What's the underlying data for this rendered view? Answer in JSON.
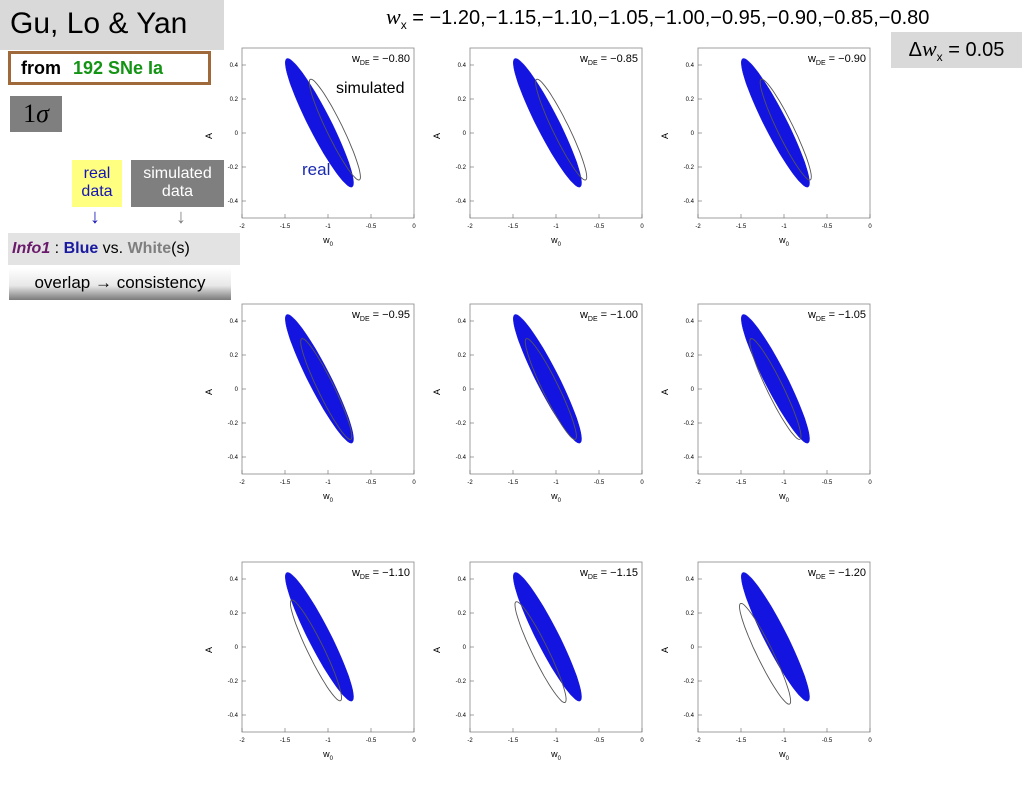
{
  "header": {
    "title": "Gu, Lo & Yan",
    "source": {
      "from": "from",
      "count": "192 SNe Ia"
    },
    "confidence": {
      "number": "1",
      "symbol": "σ"
    }
  },
  "legend": {
    "real_data": "real data",
    "simulated_data": "simulated data",
    "down_arrow": "↓"
  },
  "info": {
    "name": "Info1",
    "sep": " : ",
    "blue": "Blue",
    "vs": " vs. ",
    "white": "White",
    "suffix": "(s)"
  },
  "overlap": {
    "text": "overlap",
    "arrow": "→",
    "consistency": "consistency"
  },
  "wx_values": {
    "symbol": "w",
    "subscript": "x",
    "equals": " = ",
    "list": "−1.20,−1.15,−1.10,−1.05,−1.00,−0.95,−0.90,−0.85,−0.80"
  },
  "delta_w": {
    "delta": "Δ",
    "symbol": "w",
    "subscript": "x",
    "equals": " = ",
    "value": "0.05"
  },
  "annotations": {
    "simulated": "simulated",
    "real": "real"
  },
  "colors": {
    "real_fill": "#1414e0",
    "simulated_stroke": "#555555",
    "title_bg": "#d9d9d9",
    "real_box_bg": "#ffff80",
    "sim_box_bg": "#7f7f7f"
  },
  "chart_data": [
    {
      "type": "scatter",
      "title": "wDE = −0.80",
      "w_label": "w",
      "w_sub": "DE",
      "w_value": "= −0.80",
      "xlabel": "w",
      "xlabel_sub": "0",
      "ylabel": "A",
      "xlim": [
        -2,
        0
      ],
      "ylim": [
        -0.5,
        0.5
      ],
      "x_ticks": [
        "-2",
        "-1.5",
        "-1",
        "-0.5",
        "0"
      ],
      "y_ticks": [
        "0.4",
        "0.2",
        "0",
        "-0.2",
        "-0.4"
      ],
      "real_center": [
        -1.1,
        0.06
      ],
      "sim_center": [
        -0.92,
        0.02
      ]
    },
    {
      "type": "scatter",
      "title": "wDE = −0.85",
      "w_label": "w",
      "w_sub": "DE",
      "w_value": "= −0.85",
      "xlabel": "w",
      "xlabel_sub": "0",
      "ylabel": "A",
      "xlim": [
        -2,
        0
      ],
      "ylim": [
        -0.5,
        0.5
      ],
      "x_ticks": [
        "-2",
        "-1.5",
        "-1",
        "-0.5",
        "0"
      ],
      "y_ticks": [
        "0.4",
        "0.2",
        "0",
        "-0.2",
        "-0.4"
      ],
      "real_center": [
        -1.1,
        0.06
      ],
      "sim_center": [
        -0.94,
        0.02
      ]
    },
    {
      "type": "scatter",
      "title": "wDE = −0.90",
      "w_label": "w",
      "w_sub": "DE",
      "w_value": "= −0.90",
      "xlabel": "w",
      "xlabel_sub": "0",
      "ylabel": "A",
      "xlim": [
        -2,
        0
      ],
      "ylim": [
        -0.5,
        0.5
      ],
      "x_ticks": [
        "-2",
        "-1.5",
        "-1",
        "-0.5",
        "0"
      ],
      "y_ticks": [
        "0.4",
        "0.2",
        "0",
        "-0.2",
        "-0.4"
      ],
      "real_center": [
        -1.1,
        0.06
      ],
      "sim_center": [
        -0.98,
        0.02
      ]
    },
    {
      "type": "scatter",
      "title": "wDE = −0.95",
      "w_label": "w",
      "w_sub": "DE",
      "w_value": "= −0.95",
      "xlabel": "w",
      "xlabel_sub": "0",
      "ylabel": "A",
      "xlim": [
        -2,
        0
      ],
      "ylim": [
        -0.5,
        0.5
      ],
      "x_ticks": [
        "-2",
        "-1.5",
        "-1",
        "-0.5",
        "0"
      ],
      "y_ticks": [
        "0.4",
        "0.2",
        "0",
        "-0.2",
        "-0.4"
      ],
      "real_center": [
        -1.1,
        0.06
      ],
      "sim_center": [
        -1.02,
        0.0
      ]
    },
    {
      "type": "scatter",
      "title": "wDE = −1.00",
      "w_label": "w",
      "w_sub": "DE",
      "w_value": "= −1.00",
      "xlabel": "w",
      "xlabel_sub": "0",
      "ylabel": "A",
      "xlim": [
        -2,
        0
      ],
      "ylim": [
        -0.5,
        0.5
      ],
      "x_ticks": [
        "-2",
        "-1.5",
        "-1",
        "-0.5",
        "0"
      ],
      "y_ticks": [
        "0.4",
        "0.2",
        "0",
        "-0.2",
        "-0.4"
      ],
      "real_center": [
        -1.1,
        0.06
      ],
      "sim_center": [
        -1.06,
        0.0
      ]
    },
    {
      "type": "scatter",
      "title": "wDE = −1.05",
      "w_label": "w",
      "w_sub": "DE",
      "w_value": "= −1.05",
      "xlabel": "w",
      "xlabel_sub": "0",
      "ylabel": "A",
      "xlim": [
        -2,
        0
      ],
      "ylim": [
        -0.5,
        0.5
      ],
      "x_ticks": [
        "-2",
        "-1.5",
        "-1",
        "-0.5",
        "0"
      ],
      "y_ticks": [
        "0.4",
        "0.2",
        "0",
        "-0.2",
        "-0.4"
      ],
      "real_center": [
        -1.1,
        0.06
      ],
      "sim_center": [
        -1.1,
        0.0
      ]
    },
    {
      "type": "scatter",
      "title": "wDE = −1.10",
      "w_label": "w",
      "w_sub": "DE",
      "w_value": "= −1.10",
      "xlabel": "w",
      "xlabel_sub": "0",
      "ylabel": "A",
      "xlim": [
        -2,
        0
      ],
      "ylim": [
        -0.5,
        0.5
      ],
      "x_ticks": [
        "-2",
        "-1.5",
        "-1",
        "-0.5",
        "0"
      ],
      "y_ticks": [
        "0.4",
        "0.2",
        "0",
        "-0.2",
        "-0.4"
      ],
      "real_center": [
        -1.1,
        0.06
      ],
      "sim_center": [
        -1.14,
        -0.02
      ]
    },
    {
      "type": "scatter",
      "title": "wDE = −1.15",
      "w_label": "w",
      "w_sub": "DE",
      "w_value": "= −1.15",
      "xlabel": "w",
      "xlabel_sub": "0",
      "ylabel": "A",
      "xlim": [
        -2,
        0
      ],
      "ylim": [
        -0.5,
        0.5
      ],
      "x_ticks": [
        "-2",
        "-1.5",
        "-1",
        "-0.5",
        "0"
      ],
      "y_ticks": [
        "0.4",
        "0.2",
        "0",
        "-0.2",
        "-0.4"
      ],
      "real_center": [
        -1.1,
        0.06
      ],
      "sim_center": [
        -1.18,
        -0.03
      ]
    },
    {
      "type": "scatter",
      "title": "wDE = −1.20",
      "w_label": "w",
      "w_sub": "DE",
      "w_value": "= −1.20",
      "xlabel": "w",
      "xlabel_sub": "0",
      "ylabel": "A",
      "xlim": [
        -2,
        0
      ],
      "ylim": [
        -0.5,
        0.5
      ],
      "x_ticks": [
        "-2",
        "-1.5",
        "-1",
        "-0.5",
        "0"
      ],
      "y_ticks": [
        "0.4",
        "0.2",
        "0",
        "-0.2",
        "-0.4"
      ],
      "real_center": [
        -1.1,
        0.06
      ],
      "sim_center": [
        -1.22,
        -0.04
      ]
    }
  ]
}
